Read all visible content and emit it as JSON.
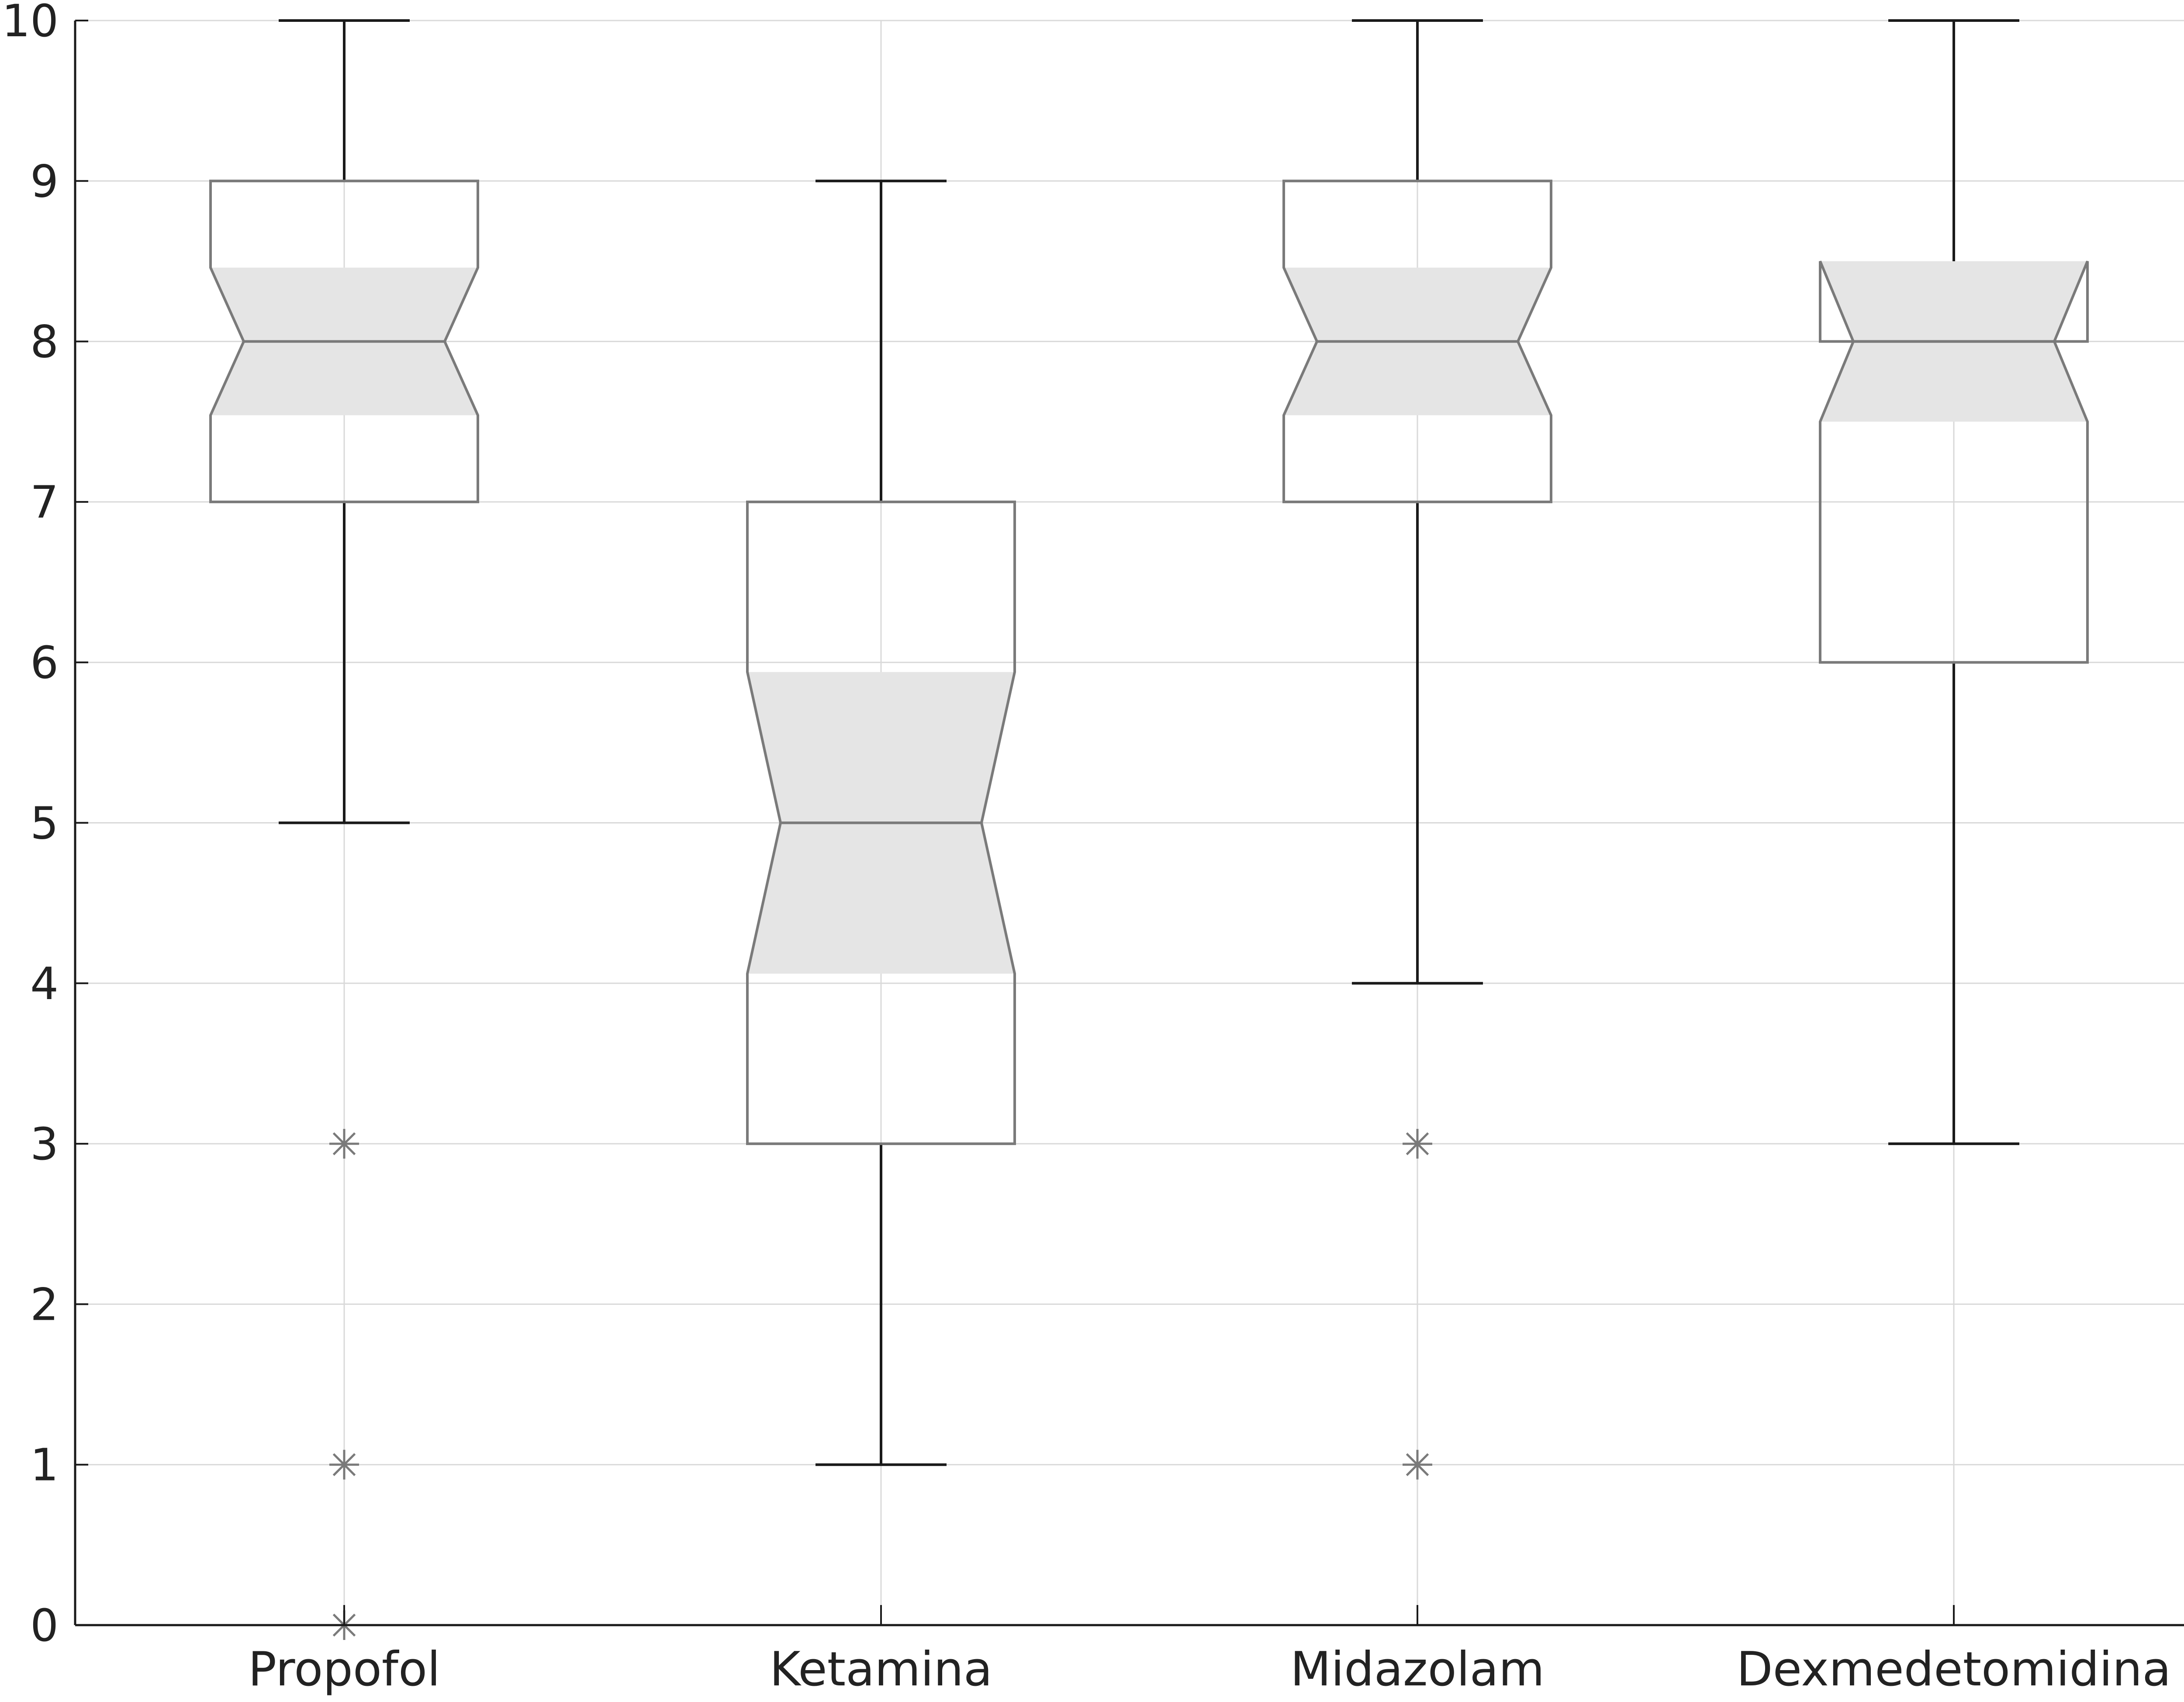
{
  "chart_data": {
    "type": "box",
    "title": "",
    "xlabel": "",
    "ylabel": "",
    "ylim": [
      0,
      10
    ],
    "yticks": [
      0,
      1,
      2,
      3,
      4,
      5,
      6,
      7,
      8,
      9,
      10
    ],
    "grid": true,
    "legend": "none",
    "notched": true,
    "categories": [
      "Propofol",
      "Ketamina",
      "Midazolam",
      "Dexmedetomidina"
    ],
    "boxes": [
      {
        "category": "Propofol",
        "whisker_low": 5,
        "q1": 7,
        "median": 8,
        "q3": 9,
        "whisker_high": 10,
        "notch_low": 7.54,
        "notch_high": 8.46,
        "outliers": [
          3,
          1,
          0
        ]
      },
      {
        "category": "Ketamina",
        "whisker_low": 1,
        "q1": 3,
        "median": 5,
        "q3": 7,
        "whisker_high": 9,
        "notch_low": 4.06,
        "notch_high": 5.94,
        "outliers": []
      },
      {
        "category": "Midazolam",
        "whisker_low": 4,
        "q1": 7,
        "median": 8,
        "q3": 9,
        "whisker_high": 10,
        "notch_low": 7.54,
        "notch_high": 8.46,
        "outliers": [
          3,
          1
        ]
      },
      {
        "category": "Dexmedetomidina",
        "whisker_low": 3,
        "q1": 6,
        "median": 8,
        "q3": 8,
        "whisker_high": 10,
        "notch_low": 7.5,
        "notch_high": 8.5,
        "outliers": []
      }
    ],
    "colors": {
      "box_edge": "#7a7a7a",
      "notch_fill": "#e5e5e5",
      "whisker": "#1a1a1a",
      "outlier": "#7a7a7a",
      "grid": "#d9d9d9",
      "axis": "#1a1a1a"
    },
    "outlier_marker": "asterisk"
  }
}
